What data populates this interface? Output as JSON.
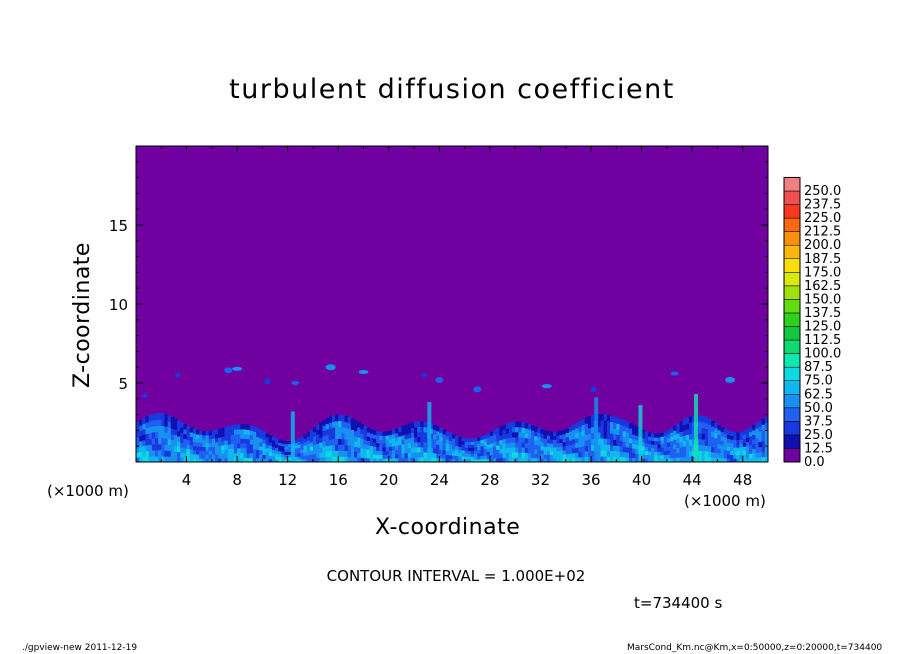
{
  "chart_data": {
    "type": "heatmap",
    "title": "turbulent diffusion coefficient",
    "xlabel": "X-coordinate",
    "ylabel": "Z-coordinate",
    "x_unit": "(×1000 m)",
    "xlim": [
      0,
      50
    ],
    "ylim": [
      0,
      20
    ],
    "x_ticks": [
      "4",
      "8",
      "12",
      "16",
      "20",
      "24",
      "28",
      "32",
      "36",
      "40",
      "44",
      "48"
    ],
    "y_ticks": [
      "5",
      "10",
      "15"
    ],
    "colorbar": {
      "levels": [
        "0.0",
        "12.5",
        "25.0",
        "37.5",
        "50.0",
        "62.5",
        "75.0",
        "87.5",
        "100.0",
        "112.5",
        "125.0",
        "137.5",
        "150.0",
        "162.5",
        "175.0",
        "187.5",
        "200.0",
        "212.5",
        "225.0",
        "237.5",
        "250.0"
      ],
      "colors": [
        "#7000a0",
        "#1010b0",
        "#1838e0",
        "#2060f0",
        "#1890f0",
        "#10b8f0",
        "#10d8e0",
        "#10e8b0",
        "#10d870",
        "#10c840",
        "#30d020",
        "#60dc10",
        "#a0e010",
        "#d8e810",
        "#f8e010",
        "#f8b810",
        "#f89010",
        "#f86810",
        "#f83820",
        "#f05050",
        "#f08080"
      ]
    },
    "contour_interval": "CONTOUR INTERVAL = 1.000E+02",
    "time_label": "t=734400 s",
    "field_summary": "background 0.0–12.5 above ~4 km; turbulent boundary layer with values up to ~100 below ~4 km"
  },
  "footer": {
    "left": "./gpview-new   2011-12-19",
    "right": "MarsCond_Km.nc@Km,x=0:50000,z=0:20000,t=734400"
  }
}
